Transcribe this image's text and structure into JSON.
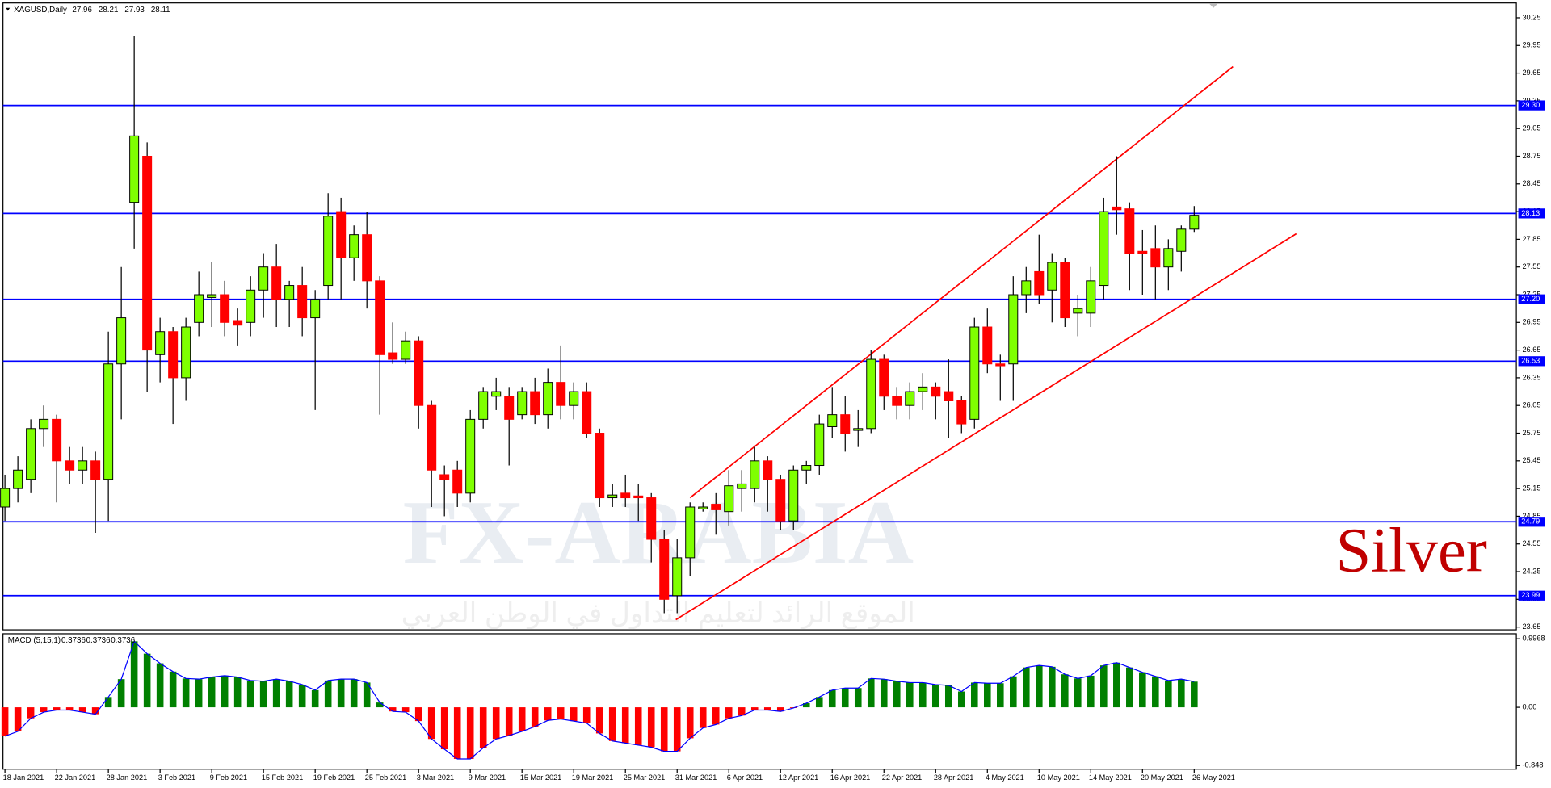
{
  "chart_data": [
    {
      "type": "candlestick",
      "title": "XAGUSD,Daily",
      "header_values": [
        27.96,
        28.21,
        27.93,
        28.11
      ],
      "categories": [
        "18 Jan 2021",
        null,
        null,
        null,
        "22 Jan 2021",
        null,
        null,
        null,
        "28 Jan 2021",
        null,
        null,
        null,
        "3 Feb 2021",
        null,
        null,
        null,
        "9 Feb 2021",
        null,
        null,
        null,
        "15 Feb 2021",
        null,
        null,
        null,
        "19 Feb 2021",
        null,
        null,
        null,
        "25 Feb 2021",
        null,
        null,
        null,
        "3 Mar 2021",
        null,
        null,
        null,
        "9 Mar 2021",
        null,
        null,
        null,
        "15 Mar 2021",
        null,
        null,
        null,
        "19 Mar 2021",
        null,
        null,
        null,
        "25 Mar 2021",
        null,
        null,
        null,
        "31 Mar 2021",
        null,
        null,
        null,
        "6 Apr 2021",
        null,
        null,
        null,
        "12 Apr 2021",
        null,
        null,
        null,
        "16 Apr 2021",
        null,
        null,
        null,
        "22 Apr 2021",
        null,
        null,
        null,
        "28 Apr 2021",
        null,
        null,
        null,
        "4 May 2021",
        null,
        null,
        null,
        "10 May 2021",
        null,
        null,
        null,
        "14 May 2021",
        null,
        null,
        null,
        "20 May 2021",
        null,
        null,
        null,
        "26 May 2021"
      ],
      "open": [
        24.95,
        25.15,
        25.25,
        25.8,
        25.9,
        25.45,
        25.35,
        25.45,
        25.25,
        26.5,
        28.25,
        28.75,
        26.6,
        26.85,
        26.35,
        26.95,
        27.22,
        27.25,
        26.97,
        26.95,
        27.3,
        27.55,
        27.2,
        27.35,
        27.0,
        27.35,
        28.15,
        27.65,
        27.9,
        27.4,
        26.62,
        26.55,
        26.75,
        26.05,
        25.3,
        25.35,
        25.1,
        25.9,
        26.15,
        26.15,
        25.95,
        26.2,
        25.95,
        26.3,
        26.05,
        26.2,
        25.75,
        25.05,
        25.1,
        25.07,
        25.05,
        24.6,
        23.99,
        24.4,
        24.93,
        24.98,
        24.9,
        25.15,
        25.15,
        25.45,
        25.25,
        24.8,
        25.35,
        25.4,
        25.82,
        25.95,
        25.78,
        25.8,
        26.55,
        26.15,
        26.05,
        26.2,
        26.25,
        26.2,
        26.1,
        25.9,
        26.9,
        26.5,
        26.5,
        27.25,
        27.5,
        27.3,
        27.6,
        27.05,
        27.05,
        27.35,
        28.2,
        28.18,
        27.72,
        27.75,
        27.55,
        27.72,
        27.96
      ],
      "high": [
        25.3,
        25.5,
        25.9,
        26.05,
        25.95,
        25.6,
        25.6,
        25.55,
        26.85,
        27.55,
        30.05,
        28.9,
        27.0,
        26.9,
        27.0,
        27.5,
        27.6,
        27.4,
        27.1,
        27.45,
        27.7,
        27.8,
        27.4,
        27.55,
        27.3,
        28.35,
        28.3,
        28.0,
        28.15,
        27.45,
        26.95,
        26.85,
        26.8,
        26.1,
        25.4,
        25.45,
        26.0,
        26.25,
        26.35,
        26.25,
        26.25,
        26.35,
        26.45,
        26.7,
        26.3,
        26.3,
        25.8,
        25.2,
        25.3,
        25.2,
        25.1,
        24.7,
        24.6,
        25.0,
        25.0,
        25.1,
        25.35,
        25.35,
        25.6,
        25.5,
        25.3,
        25.4,
        25.45,
        25.95,
        26.25,
        26.15,
        26.0,
        26.65,
        26.6,
        26.25,
        26.3,
        26.4,
        26.3,
        26.55,
        26.15,
        27.0,
        27.1,
        26.6,
        27.45,
        27.55,
        27.9,
        27.7,
        27.65,
        27.25,
        27.55,
        28.3,
        28.75,
        28.25,
        27.95,
        28.0,
        27.85,
        28.0,
        28.21
      ],
      "low": [
        24.8,
        25.0,
        25.1,
        25.6,
        25.0,
        25.2,
        25.2,
        24.67,
        24.8,
        25.9,
        27.75,
        26.2,
        26.3,
        25.85,
        26.1,
        26.8,
        26.9,
        26.8,
        26.7,
        26.8,
        27.0,
        26.9,
        26.9,
        26.8,
        26.0,
        27.2,
        27.2,
        27.4,
        27.1,
        25.95,
        26.5,
        26.5,
        25.8,
        24.95,
        24.85,
        24.95,
        25.0,
        25.8,
        26.0,
        25.4,
        25.9,
        25.85,
        25.8,
        25.9,
        25.9,
        25.7,
        24.95,
        24.95,
        24.95,
        24.8,
        24.35,
        23.8,
        23.8,
        24.2,
        24.9,
        24.65,
        24.75,
        24.9,
        25.0,
        24.9,
        24.7,
        24.7,
        25.2,
        25.3,
        25.7,
        25.55,
        25.6,
        25.75,
        26.0,
        25.9,
        25.9,
        26.0,
        25.9,
        25.7,
        25.75,
        25.8,
        26.4,
        26.1,
        26.1,
        27.05,
        27.15,
        26.95,
        26.9,
        26.8,
        26.9,
        27.2,
        27.9,
        27.3,
        27.25,
        27.2,
        27.3,
        27.5,
        27.93
      ],
      "close": [
        25.15,
        25.35,
        25.8,
        25.9,
        25.45,
        25.35,
        25.45,
        25.25,
        26.5,
        27.0,
        28.97,
        26.65,
        26.85,
        26.35,
        26.9,
        27.25,
        27.25,
        26.95,
        26.92,
        27.3,
        27.55,
        27.2,
        27.35,
        27.0,
        27.2,
        28.1,
        27.65,
        27.9,
        27.4,
        26.6,
        26.55,
        26.75,
        26.05,
        25.35,
        25.25,
        25.1,
        25.9,
        26.2,
        26.2,
        25.9,
        26.2,
        25.95,
        26.3,
        26.05,
        26.2,
        25.75,
        25.05,
        25.08,
        25.05,
        25.05,
        24.6,
        23.95,
        24.4,
        24.95,
        24.95,
        24.92,
        25.18,
        25.2,
        25.45,
        25.25,
        24.8,
        25.35,
        25.4,
        25.85,
        25.95,
        25.75,
        25.8,
        26.55,
        26.15,
        26.05,
        26.2,
        26.25,
        26.15,
        26.1,
        25.85,
        26.9,
        26.5,
        26.48,
        27.25,
        27.4,
        27.25,
        27.6,
        27.0,
        27.1,
        27.4,
        28.15,
        28.17,
        27.7,
        27.7,
        27.55,
        27.75,
        27.96,
        28.11
      ],
      "up_color": "#7fff00",
      "down_color": "#ff0000",
      "ylim": [
        23.62,
        30.41
      ],
      "yticks": [
        30.25,
        29.95,
        29.65,
        29.35,
        29.05,
        28.75,
        28.45,
        28.15,
        27.85,
        27.55,
        27.25,
        26.95,
        26.65,
        26.35,
        26.05,
        25.75,
        25.45,
        25.15,
        24.85,
        24.55,
        24.25,
        23.95,
        23.65
      ],
      "levels": [
        {
          "value": 29.3,
          "label": "29.30"
        },
        28.13,
        {
          "value": 27.2,
          "label": "27.20"
        },
        26.53,
        24.79,
        23.99
      ],
      "level_color": "#0000ff",
      "trendlines": [
        {
          "x": [
            51.9,
            99.9
          ],
          "y": [
            23.73,
            27.91
          ]
        },
        {
          "x": [
            53,
            95
          ],
          "y": [
            25.05,
            29.72
          ]
        }
      ],
      "trendline_color": "#ff0000",
      "annotation": "Silver",
      "watermark": "FX-ARABIA",
      "watermark_subtitle": "الموقع الرائد لتعليم التداول في الوطن العربي"
    },
    {
      "type": "macd",
      "title": "MACD (5,15,1)",
      "header_values": [
        0.3736,
        0.3736,
        0.3736
      ],
      "values": [
        -0.42,
        -0.35,
        -0.16,
        -0.07,
        -0.04,
        -0.04,
        -0.07,
        -0.1,
        0.15,
        0.41,
        0.96,
        0.78,
        0.64,
        0.52,
        0.42,
        0.41,
        0.44,
        0.46,
        0.44,
        0.39,
        0.38,
        0.41,
        0.38,
        0.33,
        0.25,
        0.39,
        0.41,
        0.41,
        0.36,
        0.07,
        -0.06,
        -0.07,
        -0.2,
        -0.46,
        -0.61,
        -0.75,
        -0.75,
        -0.59,
        -0.46,
        -0.41,
        -0.35,
        -0.28,
        -0.19,
        -0.17,
        -0.2,
        -0.23,
        -0.38,
        -0.49,
        -0.52,
        -0.55,
        -0.58,
        -0.64,
        -0.64,
        -0.45,
        -0.3,
        -0.25,
        -0.16,
        -0.12,
        -0.04,
        -0.04,
        -0.06,
        -0.01,
        0.06,
        0.15,
        0.25,
        0.28,
        0.28,
        0.42,
        0.41,
        0.38,
        0.36,
        0.36,
        0.33,
        0.32,
        0.23,
        0.36,
        0.35,
        0.35,
        0.45,
        0.58,
        0.61,
        0.59,
        0.48,
        0.42,
        0.46,
        0.61,
        0.65,
        0.58,
        0.51,
        0.45,
        0.39,
        0.41,
        0.3736
      ],
      "positive_color": "#008000",
      "negative_color": "#ff0000",
      "line_color": "#0000ff",
      "ylim": [
        -0.9,
        1.07
      ],
      "yticks": [
        0.9968,
        {
          "value": 0,
          "label": "0.00"
        },
        -0.848
      ]
    }
  ]
}
